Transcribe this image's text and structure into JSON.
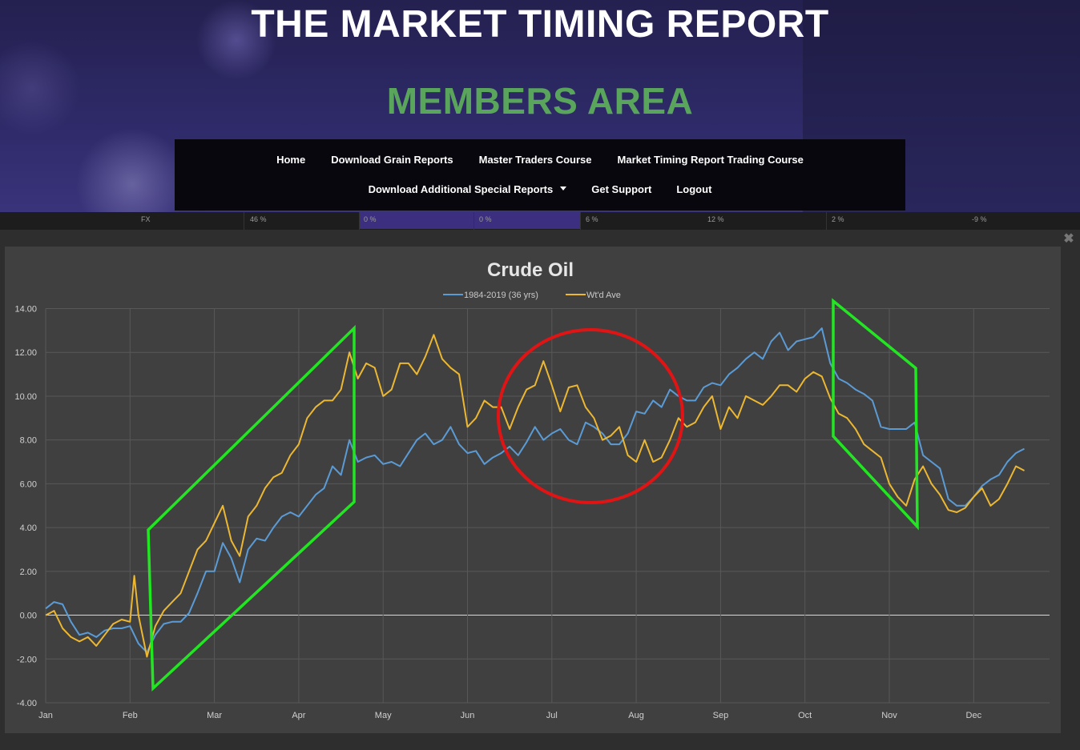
{
  "header": {
    "title": "THE MARKET TIMING REPORT",
    "subtitle": "MEMBERS AREA"
  },
  "nav": {
    "row1": [
      "Home",
      "Download Grain Reports",
      "Master Traders Course",
      "Market Timing Report Trading Course"
    ],
    "row2": [
      "Download Additional Special Reports",
      "Get Support",
      "Logout"
    ]
  },
  "strip": {
    "cells": [
      "FX",
      "46 %",
      "0 %",
      "0 %",
      "6 %",
      "12 %",
      "2 %",
      "-9 %"
    ]
  },
  "panel": {
    "close_label": "✖"
  },
  "colors": {
    "accent_green": "#5aa55c",
    "nav_bg": "#07070d",
    "series1": "#5b9bd5",
    "series2": "#ecb731",
    "annotation_green": "#22e622",
    "annotation_red": "#e01414"
  },
  "chart_data": {
    "type": "line",
    "title": "Crude Oil",
    "xlabel": "",
    "ylabel": "",
    "x_categories": [
      "Jan",
      "Feb",
      "Mar",
      "Apr",
      "May",
      "Jun",
      "Jul",
      "Aug",
      "Sep",
      "Oct",
      "Nov",
      "Dec"
    ],
    "ylim": [
      -4,
      14
    ],
    "yticks": [
      "14.00",
      "12.00",
      "10.00",
      "8.00",
      "6.00",
      "4.00",
      "2.00",
      "0.00",
      "-2.00",
      "-4.00"
    ],
    "grid": true,
    "legend_position": "top",
    "series": [
      {
        "name": "1984-2019 (36 yrs)",
        "points": [
          [
            0.0,
            0.3
          ],
          [
            0.1,
            0.6
          ],
          [
            0.2,
            0.5
          ],
          [
            0.3,
            -0.3
          ],
          [
            0.4,
            -0.9
          ],
          [
            0.5,
            -0.8
          ],
          [
            0.6,
            -1.0
          ],
          [
            0.7,
            -0.7
          ],
          [
            0.8,
            -0.6
          ],
          [
            0.9,
            -0.6
          ],
          [
            1.0,
            -0.5
          ],
          [
            1.1,
            -1.3
          ],
          [
            1.2,
            -1.7
          ],
          [
            1.3,
            -0.9
          ],
          [
            1.4,
            -0.4
          ],
          [
            1.5,
            -0.3
          ],
          [
            1.6,
            -0.3
          ],
          [
            1.7,
            0.1
          ],
          [
            1.8,
            1.0
          ],
          [
            1.9,
            2.0
          ],
          [
            2.0,
            2.0
          ],
          [
            2.1,
            3.3
          ],
          [
            2.2,
            2.6
          ],
          [
            2.3,
            1.5
          ],
          [
            2.4,
            3.0
          ],
          [
            2.5,
            3.5
          ],
          [
            2.6,
            3.4
          ],
          [
            2.7,
            4.0
          ],
          [
            2.8,
            4.5
          ],
          [
            2.9,
            4.7
          ],
          [
            3.0,
            4.5
          ],
          [
            3.1,
            5.0
          ],
          [
            3.2,
            5.5
          ],
          [
            3.3,
            5.8
          ],
          [
            3.4,
            6.8
          ],
          [
            3.5,
            6.4
          ],
          [
            3.6,
            8.0
          ],
          [
            3.7,
            7.0
          ],
          [
            3.8,
            7.2
          ],
          [
            3.9,
            7.3
          ],
          [
            4.0,
            6.9
          ],
          [
            4.1,
            7.0
          ],
          [
            4.2,
            6.8
          ],
          [
            4.3,
            7.4
          ],
          [
            4.4,
            8.0
          ],
          [
            4.5,
            8.3
          ],
          [
            4.6,
            7.8
          ],
          [
            4.7,
            8.0
          ],
          [
            4.8,
            8.6
          ],
          [
            4.9,
            7.8
          ],
          [
            5.0,
            7.4
          ],
          [
            5.1,
            7.5
          ],
          [
            5.2,
            6.9
          ],
          [
            5.3,
            7.2
          ],
          [
            5.4,
            7.4
          ],
          [
            5.5,
            7.7
          ],
          [
            5.6,
            7.3
          ],
          [
            5.7,
            7.9
          ],
          [
            5.8,
            8.6
          ],
          [
            5.9,
            8.0
          ],
          [
            6.0,
            8.3
          ],
          [
            6.1,
            8.5
          ],
          [
            6.2,
            8.0
          ],
          [
            6.3,
            7.8
          ],
          [
            6.4,
            8.8
          ],
          [
            6.5,
            8.6
          ],
          [
            6.6,
            8.3
          ],
          [
            6.7,
            7.8
          ],
          [
            6.8,
            7.8
          ],
          [
            6.9,
            8.3
          ],
          [
            7.0,
            9.3
          ],
          [
            7.1,
            9.2
          ],
          [
            7.2,
            9.8
          ],
          [
            7.3,
            9.5
          ],
          [
            7.4,
            10.3
          ],
          [
            7.5,
            10.0
          ],
          [
            7.6,
            9.8
          ],
          [
            7.7,
            9.8
          ],
          [
            7.8,
            10.4
          ],
          [
            7.9,
            10.6
          ],
          [
            8.0,
            10.5
          ],
          [
            8.1,
            11.0
          ],
          [
            8.2,
            11.3
          ],
          [
            8.3,
            11.7
          ],
          [
            8.4,
            12.0
          ],
          [
            8.5,
            11.7
          ],
          [
            8.6,
            12.5
          ],
          [
            8.7,
            12.9
          ],
          [
            8.8,
            12.1
          ],
          [
            8.9,
            12.5
          ],
          [
            9.0,
            12.6
          ],
          [
            9.1,
            12.7
          ],
          [
            9.2,
            13.1
          ],
          [
            9.3,
            11.5
          ],
          [
            9.4,
            10.8
          ],
          [
            9.5,
            10.6
          ],
          [
            9.6,
            10.3
          ],
          [
            9.7,
            10.1
          ],
          [
            9.8,
            9.8
          ],
          [
            9.9,
            8.6
          ],
          [
            10.0,
            8.5
          ],
          [
            10.1,
            8.5
          ],
          [
            10.2,
            8.5
          ],
          [
            10.3,
            8.8
          ],
          [
            10.4,
            7.3
          ],
          [
            10.5,
            7.0
          ],
          [
            10.6,
            6.7
          ],
          [
            10.7,
            5.3
          ],
          [
            10.8,
            5.0
          ],
          [
            10.9,
            5.0
          ],
          [
            11.0,
            5.4
          ],
          [
            11.1,
            5.9
          ],
          [
            11.2,
            6.2
          ],
          [
            11.3,
            6.4
          ],
          [
            11.4,
            7.0
          ],
          [
            11.5,
            7.4
          ],
          [
            11.6,
            7.6
          ]
        ]
      },
      {
        "name": "Wt'd Ave",
        "points": [
          [
            0.0,
            0.0
          ],
          [
            0.1,
            0.2
          ],
          [
            0.2,
            -0.6
          ],
          [
            0.3,
            -1.0
          ],
          [
            0.4,
            -1.2
          ],
          [
            0.5,
            -1.0
          ],
          [
            0.6,
            -1.4
          ],
          [
            0.7,
            -0.9
          ],
          [
            0.8,
            -0.4
          ],
          [
            0.9,
            -0.2
          ],
          [
            1.0,
            -0.3
          ],
          [
            1.05,
            1.8
          ],
          [
            1.1,
            0.0
          ],
          [
            1.2,
            -1.9
          ],
          [
            1.3,
            -0.5
          ],
          [
            1.4,
            0.2
          ],
          [
            1.5,
            0.6
          ],
          [
            1.6,
            1.0
          ],
          [
            1.7,
            2.0
          ],
          [
            1.8,
            3.0
          ],
          [
            1.9,
            3.4
          ],
          [
            2.0,
            4.2
          ],
          [
            2.1,
            5.0
          ],
          [
            2.2,
            3.4
          ],
          [
            2.3,
            2.7
          ],
          [
            2.4,
            4.5
          ],
          [
            2.5,
            5.0
          ],
          [
            2.6,
            5.8
          ],
          [
            2.7,
            6.3
          ],
          [
            2.8,
            6.5
          ],
          [
            2.9,
            7.3
          ],
          [
            3.0,
            7.8
          ],
          [
            3.1,
            9.0
          ],
          [
            3.2,
            9.5
          ],
          [
            3.3,
            9.8
          ],
          [
            3.4,
            9.8
          ],
          [
            3.5,
            10.3
          ],
          [
            3.6,
            12.0
          ],
          [
            3.7,
            10.8
          ],
          [
            3.8,
            11.5
          ],
          [
            3.9,
            11.3
          ],
          [
            4.0,
            10.0
          ],
          [
            4.1,
            10.3
          ],
          [
            4.2,
            11.5
          ],
          [
            4.3,
            11.5
          ],
          [
            4.4,
            11.0
          ],
          [
            4.5,
            11.8
          ],
          [
            4.6,
            12.8
          ],
          [
            4.7,
            11.7
          ],
          [
            4.8,
            11.3
          ],
          [
            4.9,
            11.0
          ],
          [
            5.0,
            8.6
          ],
          [
            5.1,
            9.0
          ],
          [
            5.2,
            9.8
          ],
          [
            5.3,
            9.5
          ],
          [
            5.4,
            9.5
          ],
          [
            5.5,
            8.5
          ],
          [
            5.6,
            9.5
          ],
          [
            5.7,
            10.3
          ],
          [
            5.8,
            10.5
          ],
          [
            5.9,
            11.6
          ],
          [
            6.0,
            10.5
          ],
          [
            6.1,
            9.3
          ],
          [
            6.2,
            10.4
          ],
          [
            6.3,
            10.5
          ],
          [
            6.4,
            9.5
          ],
          [
            6.5,
            9.0
          ],
          [
            6.6,
            8.0
          ],
          [
            6.7,
            8.2
          ],
          [
            6.8,
            8.6
          ],
          [
            6.9,
            7.3
          ],
          [
            7.0,
            7.0
          ],
          [
            7.1,
            8.0
          ],
          [
            7.2,
            7.0
          ],
          [
            7.3,
            7.2
          ],
          [
            7.4,
            8.0
          ],
          [
            7.5,
            9.0
          ],
          [
            7.6,
            8.6
          ],
          [
            7.7,
            8.8
          ],
          [
            7.8,
            9.5
          ],
          [
            7.9,
            10.0
          ],
          [
            8.0,
            8.5
          ],
          [
            8.1,
            9.5
          ],
          [
            8.2,
            9.0
          ],
          [
            8.3,
            10.0
          ],
          [
            8.4,
            9.8
          ],
          [
            8.5,
            9.6
          ],
          [
            8.6,
            10.0
          ],
          [
            8.7,
            10.5
          ],
          [
            8.8,
            10.5
          ],
          [
            8.9,
            10.2
          ],
          [
            9.0,
            10.8
          ],
          [
            9.1,
            11.1
          ],
          [
            9.2,
            10.9
          ],
          [
            9.3,
            9.9
          ],
          [
            9.4,
            9.2
          ],
          [
            9.5,
            9.0
          ],
          [
            9.6,
            8.5
          ],
          [
            9.7,
            7.8
          ],
          [
            9.8,
            7.5
          ],
          [
            9.9,
            7.2
          ],
          [
            10.0,
            6.0
          ],
          [
            10.1,
            5.4
          ],
          [
            10.2,
            5.0
          ],
          [
            10.3,
            6.2
          ],
          [
            10.4,
            6.8
          ],
          [
            10.5,
            6.0
          ],
          [
            10.6,
            5.5
          ],
          [
            10.7,
            4.8
          ],
          [
            10.8,
            4.7
          ],
          [
            10.9,
            4.9
          ],
          [
            11.0,
            5.4
          ],
          [
            11.1,
            5.8
          ],
          [
            11.2,
            5.0
          ],
          [
            11.3,
            5.3
          ],
          [
            11.4,
            6.0
          ],
          [
            11.5,
            6.8
          ],
          [
            11.6,
            6.6
          ]
        ]
      }
    ]
  }
}
